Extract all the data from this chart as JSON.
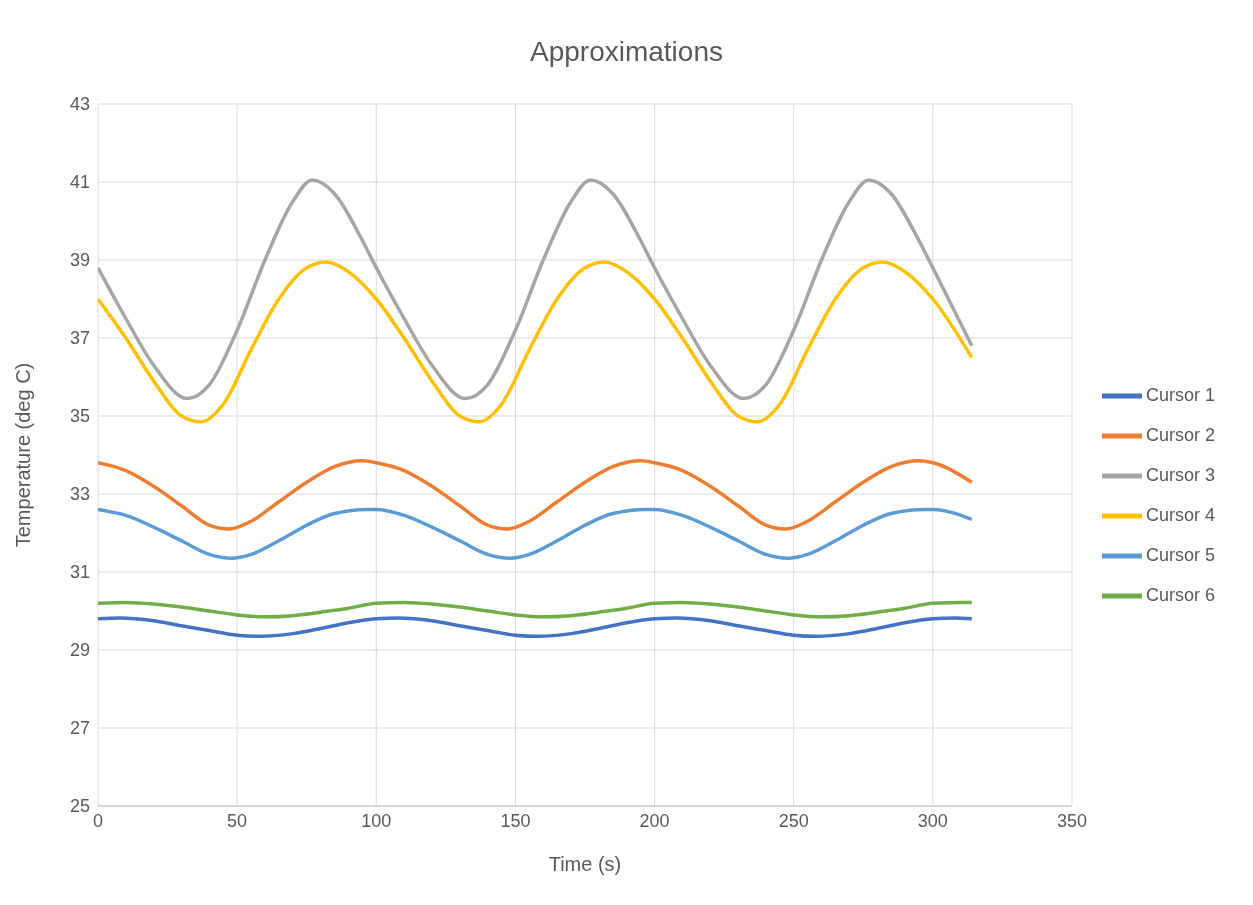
{
  "chart_data": {
    "type": "line",
    "title": "Approximations",
    "xlabel": "Time (s)",
    "ylabel": "Temperature (deg C)",
    "xlim": [
      0,
      350
    ],
    "xticks": [
      0,
      50,
      100,
      150,
      200,
      250,
      300,
      350
    ],
    "ylim": [
      25,
      43
    ],
    "yticks": [
      25,
      27,
      29,
      31,
      33,
      35,
      37,
      39,
      41,
      43
    ],
    "grid": true,
    "legend": "right",
    "marker": "none",
    "line_style": "solid",
    "series": [
      {
        "name": "Cursor 1",
        "color": "#4472c4",
        "x": [
          0,
          8,
          20,
          30,
          40,
          50,
          58,
          70,
          80,
          90,
          100,
          108,
          120,
          130,
          140,
          150,
          158,
          170,
          180,
          190,
          200,
          208,
          220,
          230,
          240,
          250,
          258,
          270,
          280,
          290,
          300,
          308,
          314
        ],
        "values": [
          29.8,
          29.82,
          29.75,
          29.62,
          29.5,
          29.38,
          29.35,
          29.42,
          29.55,
          29.7,
          29.8,
          29.82,
          29.75,
          29.62,
          29.5,
          29.38,
          29.35,
          29.42,
          29.55,
          29.7,
          29.8,
          29.82,
          29.75,
          29.62,
          29.5,
          29.38,
          29.35,
          29.42,
          29.55,
          29.7,
          29.8,
          29.82,
          29.8
        ]
      },
      {
        "name": "Cursor 2",
        "color": "#ed7d31",
        "x": [
          0,
          10,
          20,
          30,
          40,
          47,
          55,
          65,
          75,
          85,
          95,
          100,
          110,
          120,
          130,
          140,
          147,
          155,
          165,
          175,
          185,
          195,
          200,
          210,
          220,
          230,
          240,
          247,
          255,
          265,
          275,
          285,
          295,
          300,
          314
        ],
        "values": [
          33.8,
          33.6,
          33.2,
          32.7,
          32.2,
          32.1,
          32.3,
          32.8,
          33.3,
          33.7,
          33.85,
          33.8,
          33.6,
          33.2,
          32.7,
          32.2,
          32.1,
          32.3,
          32.8,
          33.3,
          33.7,
          33.85,
          33.8,
          33.6,
          33.2,
          32.7,
          32.2,
          32.1,
          32.3,
          32.8,
          33.3,
          33.7,
          33.85,
          33.8,
          33.3
        ]
      },
      {
        "name": "Cursor 3",
        "color": "#a5a5a5",
        "x": [
          0,
          10,
          20,
          32,
          40,
          50,
          60,
          70,
          77,
          85,
          95,
          100,
          110,
          120,
          132,
          140,
          150,
          160,
          170,
          177,
          185,
          195,
          200,
          210,
          220,
          232,
          240,
          250,
          260,
          270,
          277,
          285,
          295,
          300,
          314
        ],
        "values": [
          38.8,
          37.5,
          36.3,
          35.45,
          35.8,
          37.2,
          39.0,
          40.5,
          41.05,
          40.7,
          39.5,
          38.8,
          37.5,
          36.3,
          35.45,
          35.8,
          37.2,
          39.0,
          40.5,
          41.05,
          40.7,
          39.5,
          38.8,
          37.5,
          36.3,
          35.45,
          35.8,
          37.2,
          39.0,
          40.5,
          41.05,
          40.7,
          39.5,
          38.8,
          36.8
        ]
      },
      {
        "name": "Cursor 4",
        "color": "#ffc000",
        "x": [
          0,
          10,
          20,
          30,
          37,
          45,
          55,
          65,
          75,
          82,
          90,
          100,
          110,
          120,
          130,
          137,
          145,
          155,
          165,
          175,
          182,
          190,
          200,
          210,
          220,
          230,
          237,
          245,
          255,
          265,
          275,
          282,
          290,
          300,
          314
        ],
        "values": [
          38.0,
          37.0,
          35.9,
          35.0,
          34.85,
          35.3,
          36.7,
          38.0,
          38.8,
          38.95,
          38.7,
          38.0,
          37.0,
          35.9,
          35.0,
          34.85,
          35.3,
          36.7,
          38.0,
          38.8,
          38.95,
          38.7,
          38.0,
          37.0,
          35.9,
          35.0,
          34.85,
          35.3,
          36.7,
          38.0,
          38.8,
          38.95,
          38.7,
          38.0,
          36.5
        ]
      },
      {
        "name": "Cursor 5",
        "color": "#5b9bd5",
        "x": [
          0,
          10,
          20,
          30,
          40,
          48,
          55,
          65,
          75,
          85,
          97,
          100,
          110,
          120,
          130,
          140,
          148,
          155,
          165,
          175,
          185,
          197,
          200,
          210,
          220,
          230,
          240,
          248,
          255,
          265,
          275,
          285,
          297,
          300,
          314
        ],
        "values": [
          32.6,
          32.45,
          32.15,
          31.8,
          31.45,
          31.35,
          31.45,
          31.8,
          32.2,
          32.5,
          32.6,
          32.6,
          32.45,
          32.15,
          31.8,
          31.45,
          31.35,
          31.45,
          31.8,
          32.2,
          32.5,
          32.6,
          32.6,
          32.45,
          32.15,
          31.8,
          31.45,
          31.35,
          31.45,
          31.8,
          32.2,
          32.5,
          32.6,
          32.6,
          32.35
        ]
      },
      {
        "name": "Cursor 6",
        "color": "#70ad47",
        "x": [
          0,
          10,
          20,
          30,
          40,
          50,
          60,
          70,
          80,
          90,
          100,
          110,
          120,
          130,
          140,
          150,
          160,
          170,
          180,
          190,
          200,
          210,
          220,
          230,
          240,
          250,
          260,
          270,
          280,
          290,
          300,
          310,
          314
        ],
        "values": [
          30.2,
          30.22,
          30.18,
          30.1,
          30.0,
          29.9,
          29.85,
          29.88,
          29.97,
          30.07,
          30.2,
          30.22,
          30.18,
          30.1,
          30.0,
          29.9,
          29.85,
          29.88,
          29.97,
          30.07,
          30.2,
          30.22,
          30.18,
          30.1,
          30.0,
          29.9,
          29.85,
          29.88,
          29.97,
          30.07,
          30.2,
          30.22,
          30.22
        ]
      }
    ]
  }
}
